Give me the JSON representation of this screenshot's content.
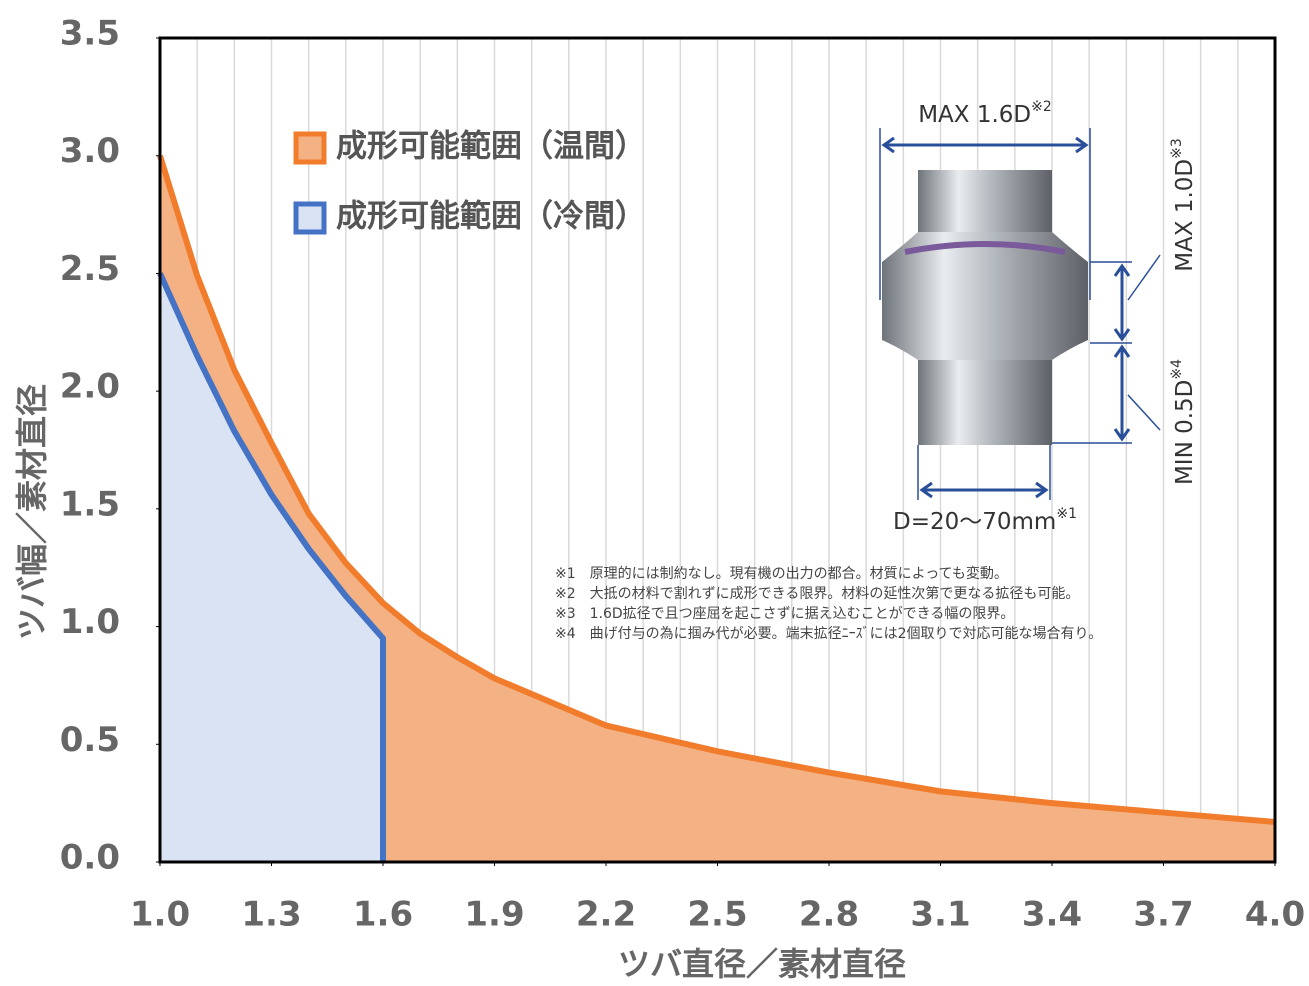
{
  "chart_data": {
    "type": "area",
    "x_label": "ツバ直径／素材直径",
    "y_label": "ツバ幅／素材直径",
    "xlim": [
      1.0,
      4.0
    ],
    "ylim": [
      0,
      3.5
    ],
    "xticks": [
      {
        "value": 1,
        "label": "1.0"
      },
      1.3,
      1.6,
      1.9,
      2.2,
      2.5,
      2.8,
      3.1,
      3.4,
      3.7,
      {
        "value": 4,
        "label": "4.0"
      }
    ],
    "x_grid": [
      1.1,
      1.2,
      1.3,
      1.4,
      1.5,
      1.6,
      1.7,
      1.8,
      1.9,
      2.0,
      2.1,
      2.2,
      2.3,
      2.4,
      2.5,
      2.6,
      2.7,
      2.8,
      2.9,
      3.0,
      3.1,
      3.2,
      3.3,
      3.4,
      3.5,
      3.6,
      3.7,
      3.8,
      3.9
    ],
    "yticks": [
      {
        "value": 0,
        "label": "0.0"
      },
      0.5,
      {
        "value": 1,
        "label": "1.0"
      },
      1.5,
      {
        "value": 2,
        "label": "2.0"
      },
      2.5,
      {
        "value": 3,
        "label": "3.0"
      },
      3.5
    ],
    "series": [
      {
        "name": "成形可能範囲（温間）",
        "color": "#f07c2c",
        "fill": "#f4b183",
        "x": [
          1.0,
          1.1,
          1.2,
          1.3,
          1.4,
          1.5,
          1.6,
          1.7,
          1.8,
          1.9,
          2.2,
          2.5,
          2.8,
          3.1,
          3.4,
          3.7,
          4.0
        ],
        "values": [
          3.0,
          2.49,
          2.09,
          1.78,
          1.48,
          1.27,
          1.1,
          0.97,
          0.87,
          0.78,
          0.58,
          0.47,
          0.38,
          0.3,
          0.25,
          0.21,
          0.17
        ]
      },
      {
        "name": "成形可能範囲（冷間）",
        "color": "#4472c4",
        "fill": "#dae3f3",
        "x": [
          1.0,
          1.1,
          1.2,
          1.3,
          1.4,
          1.5,
          1.6,
          1.6
        ],
        "values": [
          2.5,
          2.15,
          1.83,
          1.56,
          1.33,
          1.13,
          0.95,
          0
        ]
      }
    ],
    "annotations": [
      {
        "text": "MAX 1.6D",
        "mark": "※2"
      },
      {
        "text": "MAX 1.0D",
        "mark": "※3"
      },
      {
        "text": "MIN 0.5D",
        "mark": "※4"
      },
      {
        "text": "D=20〜70mm",
        "mark": "※1"
      }
    ],
    "notes": [
      "※1　原理的には制約なし。現有機の出力の都合。材質によっても変動。",
      "※2　大抵の材料で割れずに成形できる限界。材料の延性次第で更なる拡径も可能。",
      "※3　1.6D拡径で且つ座屈を起こさずに据え込むことができる幅の限界。",
      "※4　曲げ付与の為に掴み代が必要。端末拡径ﾆｰｽﾞには2個取りで対応可能な場合有り。"
    ]
  }
}
